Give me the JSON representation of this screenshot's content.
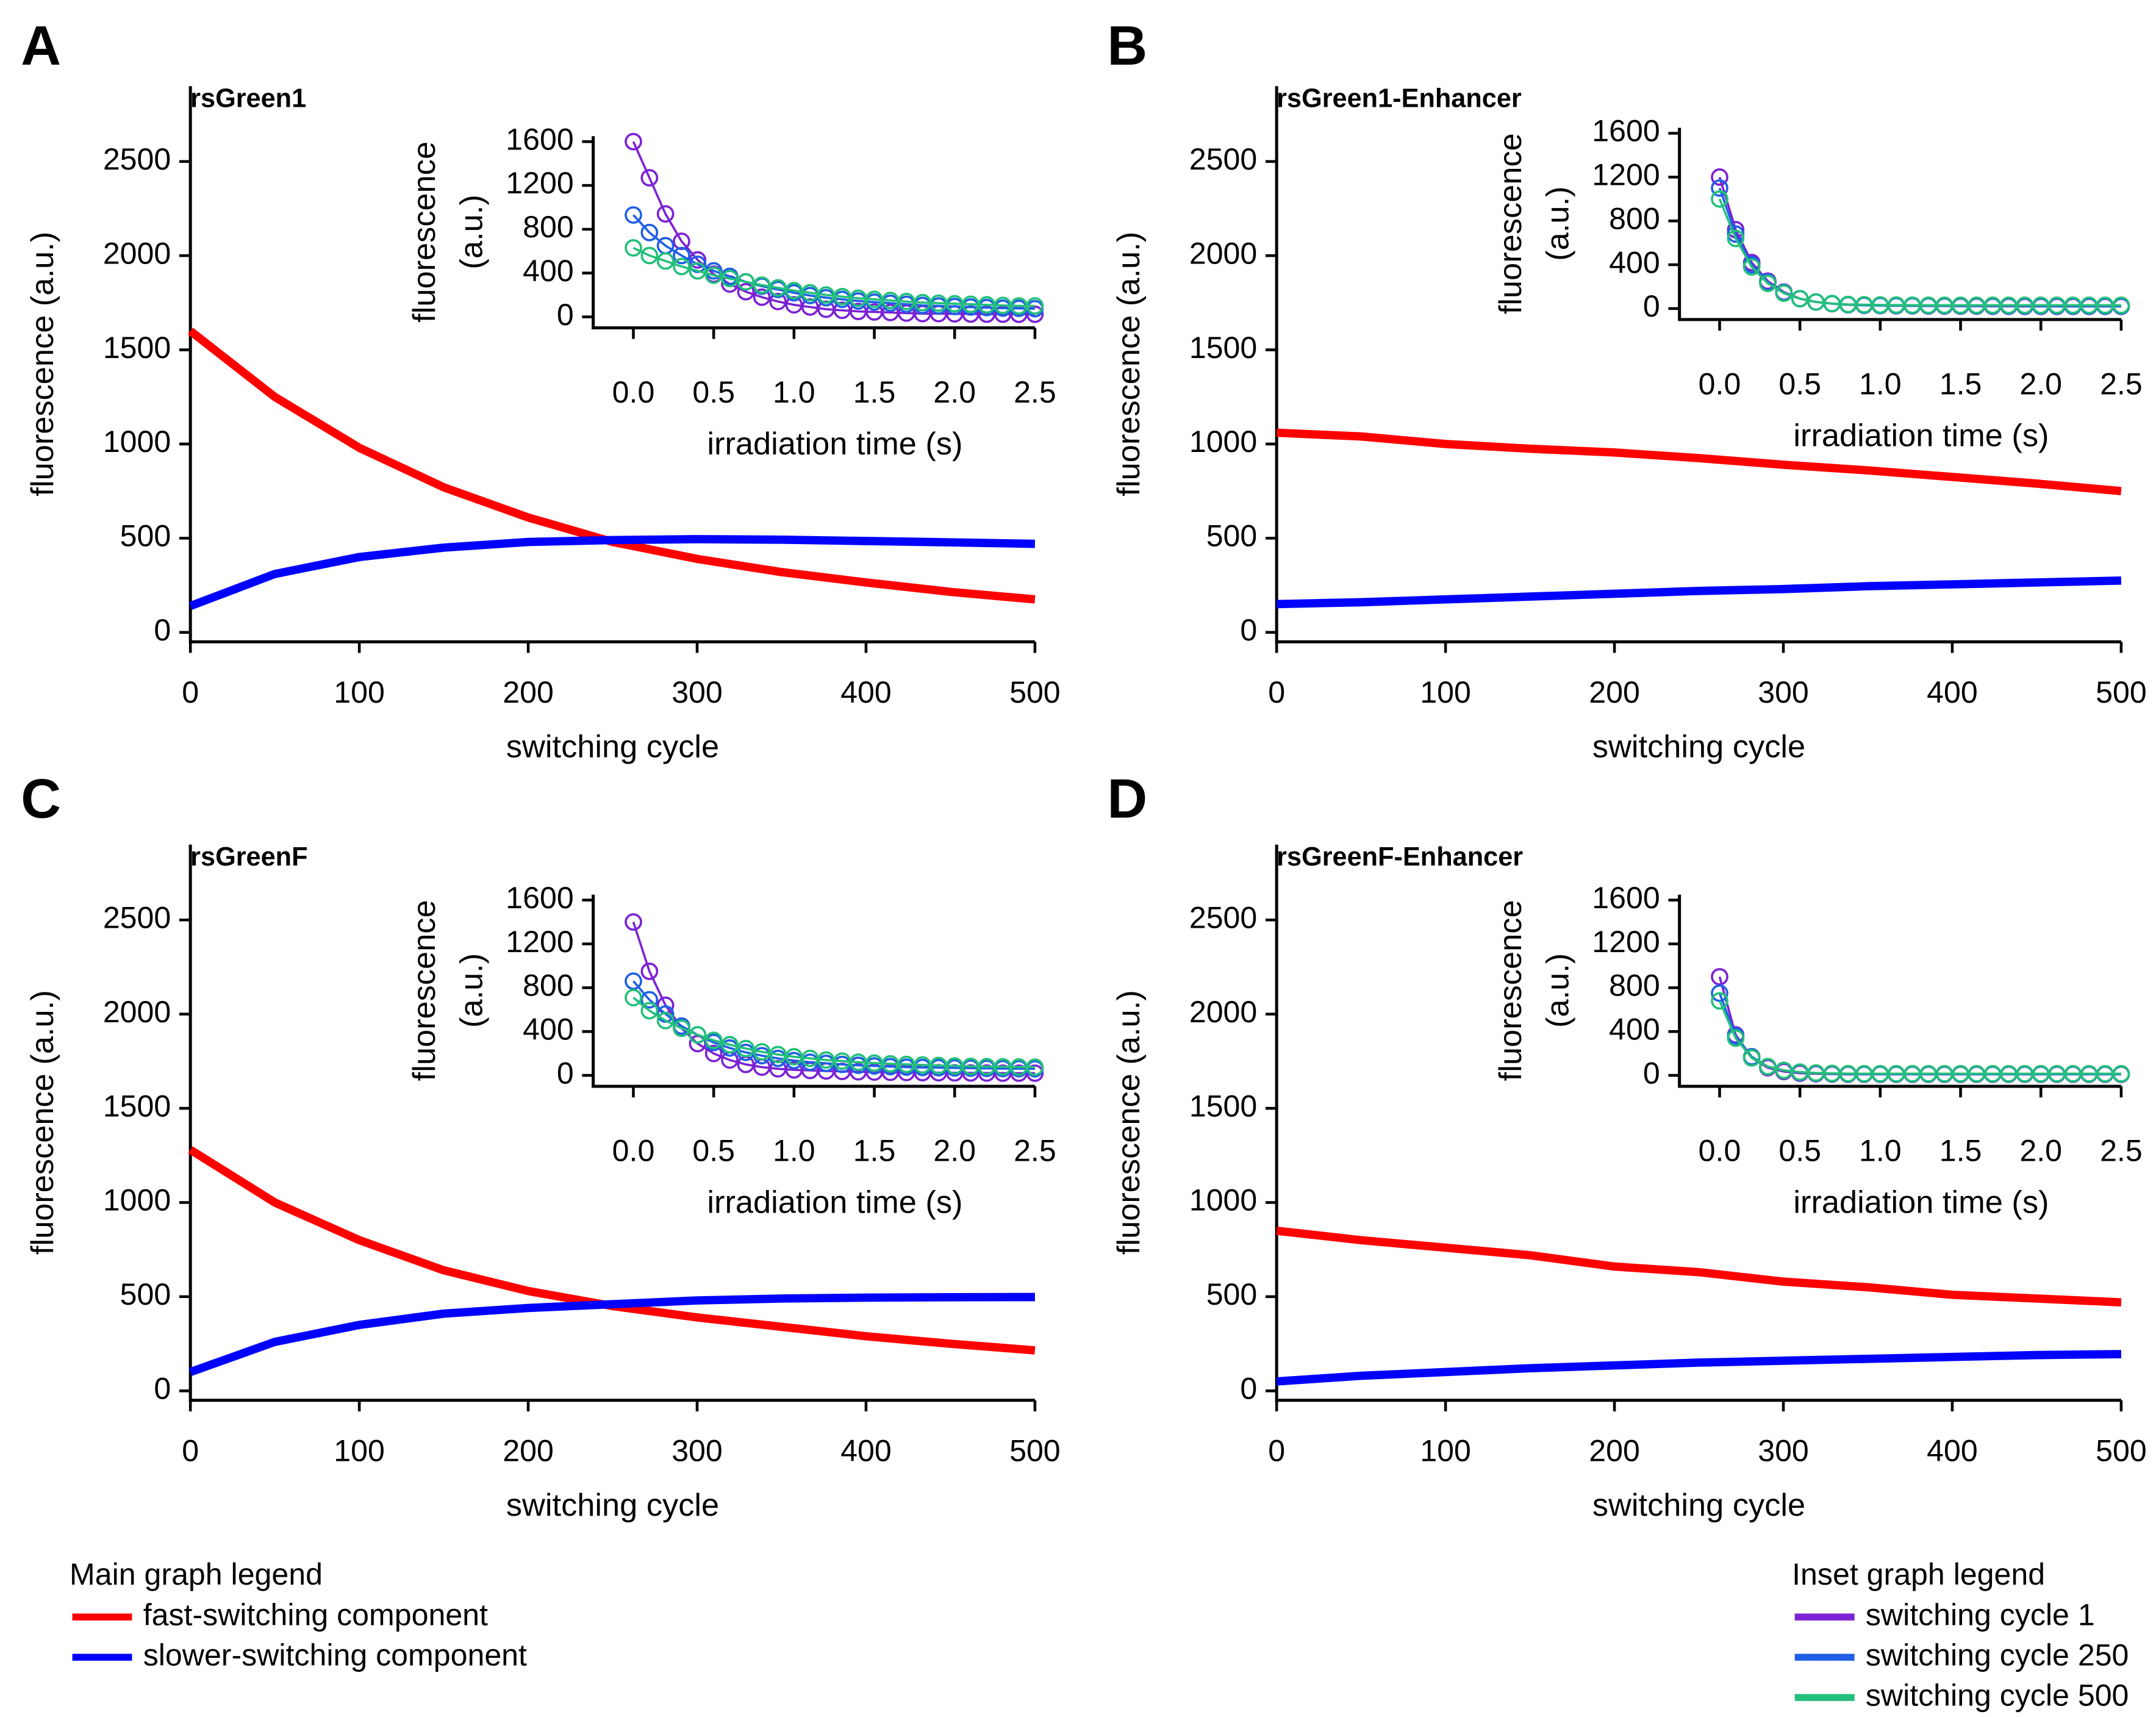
{
  "chart_data": [
    {
      "type": "line",
      "panel": "A",
      "title": "rsGreen1",
      "x_label": "switching cycle",
      "y_label": "fluorescence (a.u.)",
      "x": [
        0,
        50,
        100,
        150,
        200,
        250,
        300,
        350,
        400,
        450,
        500
      ],
      "series": [
        {
          "color": "#ff0000",
          "values": [
            1600,
            1250,
            980,
            770,
            610,
            480,
            390,
            320,
            265,
            215,
            175
          ]
        },
        {
          "color": "#0000ff",
          "values": [
            140,
            310,
            400,
            450,
            480,
            490,
            495,
            492,
            485,
            478,
            470
          ]
        }
      ],
      "xlim": [
        0,
        500
      ],
      "xticks": [
        0,
        100,
        200,
        300,
        400,
        500
      ],
      "ylim": [
        -50,
        2900
      ],
      "yticks": [
        0,
        500,
        1000,
        1500,
        2000,
        2500
      ]
    },
    {
      "type": "line-marker",
      "x_label": "irradiation time (s)",
      "y_label": [
        "fluorescence",
        "(a.u.)"
      ],
      "x": [
        0,
        0.1,
        0.2,
        0.3,
        0.4,
        0.5,
        0.6,
        0.7,
        0.8,
        0.9,
        1,
        1.1,
        1.2,
        1.3,
        1.4,
        1.5,
        1.6,
        1.7,
        1.8,
        1.9,
        2,
        2.1,
        2.2,
        2.3,
        2.4,
        2.5
      ],
      "series": [
        {
          "color": "#7b22d4",
          "values": [
            1600,
            1270,
            940,
            690,
            520,
            390,
            300,
            230,
            180,
            140,
            110,
            90,
            70,
            60,
            50,
            45,
            40,
            35,
            30,
            30,
            28,
            26,
            25,
            25,
            24,
            24
          ]
        },
        {
          "color": "#1f5fe6",
          "values": [
            930,
            770,
            650,
            560,
            480,
            420,
            370,
            320,
            280,
            250,
            220,
            195,
            175,
            160,
            145,
            135,
            125,
            115,
            105,
            100,
            95,
            90,
            85,
            80,
            78,
            75
          ]
        },
        {
          "color": "#22c07a",
          "values": [
            630,
            560,
            510,
            460,
            420,
            380,
            350,
            320,
            290,
            265,
            240,
            220,
            200,
            185,
            170,
            160,
            150,
            140,
            130,
            125,
            120,
            115,
            110,
            105,
            100,
            100
          ]
        }
      ],
      "xlim": [
        -0.25,
        2.5
      ],
      "xticks": [
        {
          "value": 0,
          "label": "0.0"
        },
        0.5,
        {
          "value": 1,
          "label": "1.0"
        },
        1.5,
        {
          "value": 2,
          "label": "2.0"
        },
        2.5
      ],
      "ylim": [
        -100,
        1650
      ],
      "yticks": [
        0,
        400,
        800,
        1200,
        1600
      ]
    },
    {
      "type": "line",
      "panel": "B",
      "title": "rsGreen1-Enhancer",
      "x_label": "switching cycle",
      "y_label": "fluorescence (a.u.)",
      "x": [
        0,
        50,
        100,
        150,
        200,
        250,
        300,
        350,
        400,
        450,
        500
      ],
      "series": [
        {
          "color": "#ff0000",
          "values": [
            1060,
            1040,
            1000,
            975,
            955,
            925,
            890,
            860,
            825,
            790,
            750
          ]
        },
        {
          "color": "#0000ff",
          "values": [
            150,
            160,
            175,
            190,
            205,
            220,
            230,
            245,
            255,
            265,
            275
          ]
        }
      ],
      "xlim": [
        0,
        500
      ],
      "xticks": [
        0,
        100,
        200,
        300,
        400,
        500
      ],
      "ylim": [
        -50,
        2900
      ],
      "yticks": [
        0,
        500,
        1000,
        1500,
        2000,
        2500
      ]
    },
    {
      "type": "line-marker",
      "x_label": "irradiation time (s)",
      "y_label": [
        "fluorescence",
        "(a.u.)"
      ],
      "x": [
        0,
        0.1,
        0.2,
        0.3,
        0.4,
        0.5,
        0.6,
        0.7,
        0.8,
        0.9,
        1,
        1.1,
        1.2,
        1.3,
        1.4,
        1.5,
        1.6,
        1.7,
        1.8,
        1.9,
        2,
        2.1,
        2.2,
        2.3,
        2.4,
        2.5
      ],
      "series": [
        {
          "color": "#7b22d4",
          "values": [
            1200,
            720,
            420,
            250,
            150,
            90,
            60,
            45,
            35,
            30,
            28,
            26,
            25,
            24,
            23,
            22,
            22,
            21,
            21,
            20,
            20,
            20,
            20,
            20,
            20,
            20
          ]
        },
        {
          "color": "#1f5fe6",
          "values": [
            1100,
            680,
            400,
            240,
            145,
            90,
            60,
            45,
            35,
            30,
            28,
            27,
            26,
            25,
            25,
            24,
            24,
            23,
            23,
            23,
            22,
            22,
            22,
            22,
            22,
            22
          ]
        },
        {
          "color": "#22c07a",
          "values": [
            1000,
            640,
            380,
            230,
            140,
            90,
            60,
            45,
            38,
            35,
            33,
            32,
            31,
            30,
            30,
            30,
            30,
            30,
            30,
            30,
            30,
            30,
            30,
            30,
            30,
            30
          ]
        }
      ],
      "xlim": [
        -0.25,
        2.5
      ],
      "xticks": [
        {
          "value": 0,
          "label": "0.0"
        },
        0.5,
        {
          "value": 1,
          "label": "1.0"
        },
        1.5,
        {
          "value": 2,
          "label": "2.0"
        },
        2.5
      ],
      "ylim": [
        -100,
        1650
      ],
      "yticks": [
        0,
        400,
        800,
        1200,
        1600
      ]
    },
    {
      "type": "line",
      "panel": "C",
      "title": "rsGreenF",
      "x_label": "switching cycle",
      "y_label": "fluorescence (a.u.)",
      "x": [
        0,
        50,
        100,
        150,
        200,
        250,
        300,
        350,
        400,
        450,
        500
      ],
      "series": [
        {
          "color": "#ff0000",
          "values": [
            1280,
            1000,
            800,
            640,
            530,
            450,
            390,
            340,
            290,
            250,
            215
          ]
        },
        {
          "color": "#0000ff",
          "values": [
            100,
            260,
            350,
            410,
            440,
            460,
            480,
            490,
            495,
            497,
            498
          ]
        }
      ],
      "xlim": [
        0,
        500
      ],
      "xticks": [
        0,
        100,
        200,
        300,
        400,
        500
      ],
      "ylim": [
        -50,
        2900
      ],
      "yticks": [
        0,
        500,
        1000,
        1500,
        2000,
        2500
      ]
    },
    {
      "type": "line-marker",
      "x_label": "irradiation time (s)",
      "y_label": [
        "fluorescence",
        "(a.u.)"
      ],
      "x": [
        0,
        0.1,
        0.2,
        0.3,
        0.4,
        0.5,
        0.6,
        0.7,
        0.8,
        0.9,
        1,
        1.1,
        1.2,
        1.3,
        1.4,
        1.5,
        1.6,
        1.7,
        1.8,
        1.9,
        2,
        2.1,
        2.2,
        2.3,
        2.4,
        2.5
      ],
      "series": [
        {
          "color": "#7b22d4",
          "values": [
            1400,
            950,
            640,
            430,
            290,
            200,
            140,
            100,
            75,
            60,
            50,
            45,
            40,
            36,
            33,
            30,
            28,
            26,
            25,
            24,
            23,
            22,
            21,
            20,
            20,
            20
          ]
        },
        {
          "color": "#1f5fe6",
          "values": [
            860,
            690,
            560,
            450,
            370,
            300,
            250,
            210,
            180,
            155,
            135,
            120,
            110,
            100,
            92,
            86,
            80,
            75,
            72,
            70,
            68,
            66,
            64,
            62,
            61,
            60
          ]
        },
        {
          "color": "#22c07a",
          "values": [
            710,
            590,
            500,
            430,
            370,
            320,
            280,
            245,
            215,
            190,
            170,
            155,
            140,
            130,
            120,
            112,
            105,
            100,
            95,
            90,
            86,
            82,
            80,
            78,
            76,
            75
          ]
        }
      ],
      "xlim": [
        -0.25,
        2.5
      ],
      "xticks": [
        {
          "value": 0,
          "label": "0.0"
        },
        0.5,
        {
          "value": 1,
          "label": "1.0"
        },
        1.5,
        {
          "value": 2,
          "label": "2.0"
        },
        2.5
      ],
      "ylim": [
        -100,
        1650
      ],
      "yticks": [
        0,
        400,
        800,
        1200,
        1600
      ]
    },
    {
      "type": "line",
      "panel": "D",
      "title": "rsGreenF-Enhancer",
      "x_label": "switching cycle",
      "y_label": "fluorescence (a.u.)",
      "x": [
        0,
        50,
        100,
        150,
        200,
        250,
        300,
        350,
        400,
        450,
        500
      ],
      "series": [
        {
          "color": "#ff0000",
          "values": [
            850,
            800,
            760,
            720,
            660,
            630,
            580,
            550,
            510,
            490,
            470
          ]
        },
        {
          "color": "#0000ff",
          "values": [
            50,
            80,
            100,
            120,
            135,
            150,
            160,
            170,
            180,
            190,
            195
          ]
        }
      ],
      "xlim": [
        0,
        500
      ],
      "xticks": [
        0,
        100,
        200,
        300,
        400,
        500
      ],
      "ylim": [
        -50,
        2900
      ],
      "yticks": [
        0,
        500,
        1000,
        1500,
        2000,
        2500
      ]
    },
    {
      "type": "line-marker",
      "x_label": "irradiation time (s)",
      "y_label": [
        "fluorescence",
        "(a.u.)"
      ],
      "x": [
        0,
        0.1,
        0.2,
        0.3,
        0.4,
        0.5,
        0.6,
        0.7,
        0.8,
        0.9,
        1,
        1.1,
        1.2,
        1.3,
        1.4,
        1.5,
        1.6,
        1.7,
        1.8,
        1.9,
        2,
        2.1,
        2.2,
        2.3,
        2.4,
        2.5
      ],
      "series": [
        {
          "color": "#7b22d4",
          "values": [
            900,
            370,
            160,
            70,
            35,
            20,
            15,
            12,
            10,
            10,
            10,
            10,
            10,
            10,
            10,
            10,
            10,
            10,
            10,
            10,
            10,
            10,
            10,
            10,
            10,
            10
          ]
        },
        {
          "color": "#1f5fe6",
          "values": [
            750,
            360,
            170,
            80,
            45,
            28,
            20,
            15,
            13,
            12,
            12,
            12,
            12,
            12,
            12,
            12,
            12,
            12,
            12,
            12,
            12,
            12,
            12,
            12,
            12,
            12
          ]
        },
        {
          "color": "#22c07a",
          "values": [
            680,
            340,
            160,
            80,
            45,
            30,
            22,
            18,
            16,
            15,
            15,
            15,
            15,
            15,
            15,
            15,
            15,
            15,
            15,
            15,
            15,
            15,
            15,
            15,
            15,
            15
          ]
        }
      ],
      "xlim": [
        -0.25,
        2.5
      ],
      "xticks": [
        {
          "value": 0,
          "label": "0.0"
        },
        0.5,
        {
          "value": 1,
          "label": "1.0"
        },
        1.5,
        {
          "value": 2,
          "label": "2.0"
        },
        2.5
      ],
      "ylim": [
        -100,
        1650
      ],
      "yticks": [
        0,
        400,
        800,
        1200,
        1600
      ]
    }
  ],
  "main_legend": {
    "title": "Main graph legend",
    "entries": [
      {
        "name": "fast-switching component",
        "color": "#ff0000"
      },
      {
        "name": "slower-switching component",
        "color": "#0000ff"
      }
    ]
  },
  "inset_legend": {
    "title": "Inset graph legend",
    "entries": [
      {
        "name": "switching cycle 1",
        "color": "#7b22d4"
      },
      {
        "name": "switching cycle 250",
        "color": "#1f5fe6"
      },
      {
        "name": "switching cycle 500",
        "color": "#22c07a"
      }
    ]
  }
}
